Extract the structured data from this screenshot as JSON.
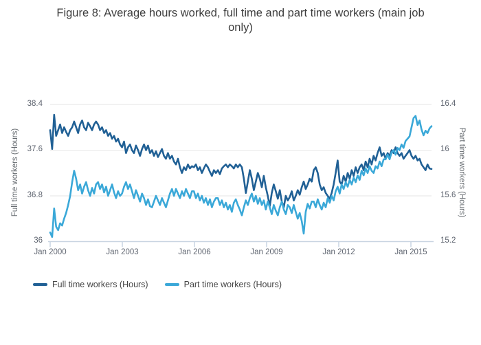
{
  "title": {
    "lines": [
      "Figure 8: Average hours worked, full time and part time workers (main job",
      "only)"
    ]
  },
  "chart_data": {
    "type": "line",
    "title": "Figure 8: Average hours worked, full time and part time workers (main job only)",
    "x": {
      "start": "Jan 2000",
      "end": "Dec 2015",
      "frequency": "monthly",
      "points_per_series": 192
    },
    "x_tick_labels": [
      "Jan 2000",
      "Jan 2003",
      "Jan 2006",
      "Jan 2009",
      "Jan 2012",
      "Jan 2015"
    ],
    "yaxis_left": {
      "label": "Full time workers (Hours)",
      "range": [
        36,
        38.4
      ],
      "tick_labels": [
        "38.4",
        "37.6",
        "36.8",
        "36"
      ]
    },
    "yaxis_right": {
      "label": "Part time workers (Hours)",
      "range": [
        15.2,
        16.4
      ],
      "tick_labels": [
        "16.4",
        "16",
        "15.6",
        "15.2"
      ]
    },
    "grid": true,
    "legend_position": "bottom-left",
    "colors": {
      "grid": "#e6e6e6",
      "axis_line": "#c9d4e2",
      "tick_text": "#5f6570",
      "title_text": "#3d3d3d"
    },
    "series": [
      {
        "name": "Full time workers (Hours)",
        "axis": "left",
        "color": "#206095",
        "values": [
          37.95,
          37.62,
          38.22,
          37.85,
          37.95,
          38.05,
          37.9,
          38.0,
          37.92,
          37.85,
          37.95,
          38.0,
          38.1,
          38.0,
          37.9,
          38.05,
          38.12,
          38.0,
          37.95,
          38.08,
          38.02,
          37.95,
          38.05,
          38.1,
          38.05,
          37.95,
          38.0,
          37.9,
          37.95,
          37.85,
          37.9,
          37.8,
          37.85,
          37.75,
          37.8,
          37.7,
          37.65,
          37.75,
          37.55,
          37.65,
          37.7,
          37.6,
          37.55,
          37.68,
          37.6,
          37.5,
          37.62,
          37.7,
          37.6,
          37.68,
          37.55,
          37.6,
          37.5,
          37.58,
          37.48,
          37.55,
          37.62,
          37.5,
          37.45,
          37.55,
          37.45,
          37.5,
          37.4,
          37.35,
          37.45,
          37.3,
          37.2,
          37.3,
          37.25,
          37.35,
          37.28,
          37.32,
          37.3,
          37.35,
          37.25,
          37.3,
          37.2,
          37.28,
          37.35,
          37.3,
          37.22,
          37.15,
          37.25,
          37.2,
          37.25,
          37.18,
          37.28,
          37.32,
          37.35,
          37.3,
          37.35,
          37.32,
          37.28,
          37.35,
          37.3,
          37.35,
          37.3,
          37.1,
          36.85,
          37.05,
          37.25,
          37.1,
          36.9,
          37.05,
          37.2,
          37.1,
          36.95,
          37.15,
          36.95,
          36.8,
          36.62,
          36.85,
          37.0,
          36.88,
          36.75,
          36.9,
          36.7,
          36.6,
          36.8,
          36.72,
          36.78,
          36.88,
          36.72,
          36.8,
          36.9,
          36.82,
          36.95,
          37.05,
          36.92,
          37.0,
          37.1,
          37.05,
          37.25,
          37.3,
          37.2,
          37.0,
          36.9,
          36.95,
          36.85,
          36.8,
          36.75,
          36.85,
          37.0,
          37.2,
          37.42,
          37.05,
          37.0,
          37.15,
          37.05,
          37.2,
          37.1,
          37.25,
          37.15,
          37.3,
          37.2,
          37.3,
          37.35,
          37.25,
          37.4,
          37.3,
          37.45,
          37.35,
          37.5,
          37.42,
          37.55,
          37.65,
          37.5,
          37.55,
          37.45,
          37.55,
          37.5,
          37.6,
          37.55,
          37.65,
          37.55,
          37.5,
          37.55,
          37.45,
          37.5,
          37.55,
          37.6,
          37.5,
          37.45,
          37.5,
          37.42,
          37.45,
          37.35,
          37.3,
          37.25,
          37.35,
          37.28,
          37.27
        ]
      },
      {
        "name": "Part time workers (Hours)",
        "axis": "right",
        "color": "#3aa8d8",
        "values": [
          15.28,
          15.24,
          15.49,
          15.33,
          15.3,
          15.36,
          15.34,
          15.4,
          15.45,
          15.52,
          15.6,
          15.72,
          15.82,
          15.75,
          15.65,
          15.7,
          15.62,
          15.68,
          15.72,
          15.65,
          15.6,
          15.67,
          15.62,
          15.7,
          15.72,
          15.66,
          15.7,
          15.63,
          15.68,
          15.6,
          15.65,
          15.7,
          15.63,
          15.58,
          15.64,
          15.6,
          15.62,
          15.68,
          15.72,
          15.66,
          15.7,
          15.64,
          15.58,
          15.65,
          15.6,
          15.55,
          15.62,
          15.58,
          15.52,
          15.57,
          15.51,
          15.5,
          15.55,
          15.6,
          15.56,
          15.52,
          15.58,
          15.54,
          15.5,
          15.56,
          15.62,
          15.66,
          15.6,
          15.66,
          15.62,
          15.58,
          15.64,
          15.6,
          15.66,
          15.62,
          15.58,
          15.64,
          15.64,
          15.58,
          15.62,
          15.56,
          15.6,
          15.54,
          15.58,
          15.52,
          15.57,
          15.5,
          15.55,
          15.58,
          15.58,
          15.52,
          15.56,
          15.5,
          15.54,
          15.48,
          15.52,
          15.46,
          15.54,
          15.57,
          15.52,
          15.48,
          15.43,
          15.5,
          15.56,
          15.52,
          15.58,
          15.62,
          15.55,
          15.6,
          15.53,
          15.58,
          15.52,
          15.56,
          15.48,
          15.55,
          15.5,
          15.44,
          15.52,
          15.47,
          15.43,
          15.5,
          15.55,
          15.48,
          15.44,
          15.52,
          15.5,
          15.45,
          15.52,
          15.46,
          15.4,
          15.45,
          15.38,
          15.27,
          15.46,
          15.53,
          15.49,
          15.55,
          15.55,
          15.5,
          15.57,
          15.52,
          15.48,
          15.54,
          15.5,
          15.58,
          15.54,
          15.6,
          15.56,
          15.64,
          15.68,
          15.62,
          15.7,
          15.66,
          15.72,
          15.68,
          15.74,
          15.7,
          15.76,
          15.72,
          15.78,
          15.74,
          15.82,
          15.78,
          15.84,
          15.8,
          15.86,
          15.82,
          15.8,
          15.86,
          15.84,
          15.9,
          15.86,
          15.92,
          15.92,
          15.96,
          15.92,
          15.98,
          16.0,
          15.96,
          16.02,
          16.0,
          16.05,
          16.02,
          16.08,
          16.1,
          16.12,
          16.2,
          16.28,
          16.3,
          16.22,
          16.26,
          16.18,
          16.13,
          16.17,
          16.15,
          16.19,
          16.21
        ]
      }
    ]
  }
}
